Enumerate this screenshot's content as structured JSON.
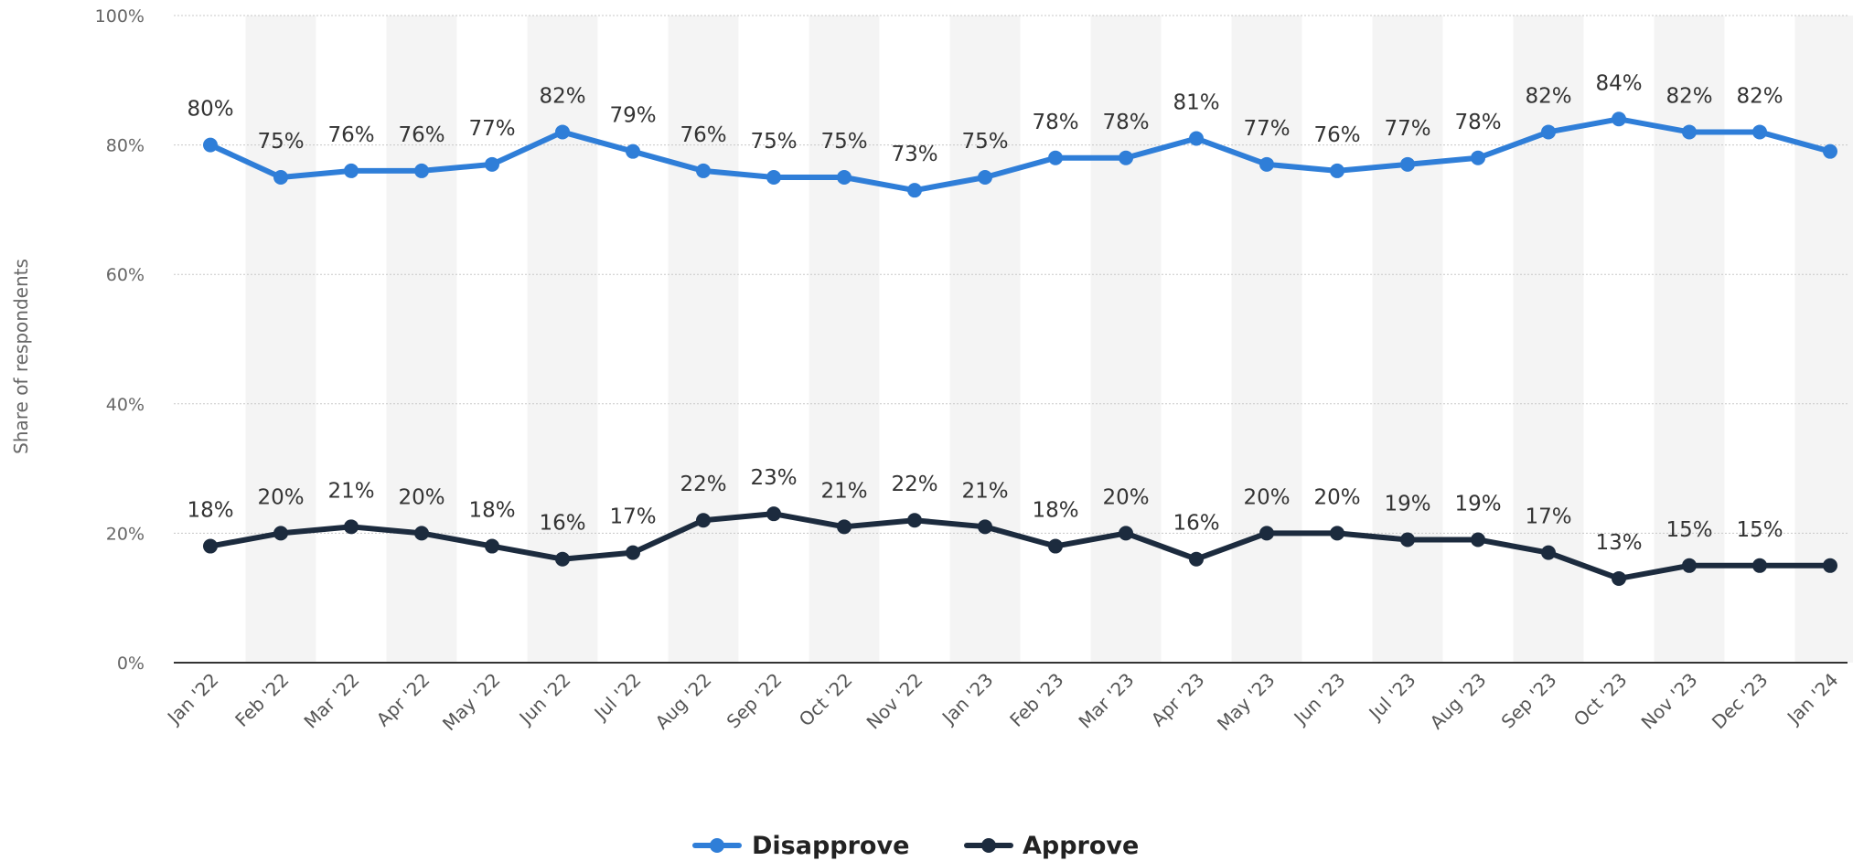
{
  "chart_data": {
    "type": "line",
    "title": "",
    "xlabel": "",
    "ylabel": "Share of respondents",
    "ylim": [
      0,
      100
    ],
    "yticks": [
      0,
      20,
      40,
      60,
      80,
      100
    ],
    "ytick_labels": [
      "0%",
      "20%",
      "40%",
      "60%",
      "80%",
      "100%"
    ],
    "grid": true,
    "legend_position": "bottom",
    "categories": [
      "Jan '22",
      "Feb '22",
      "Mar '22",
      "Apr '22",
      "May '22",
      "Jun '22",
      "Jul '22",
      "Aug '22",
      "Sep '22",
      "Oct '22",
      "Nov '22",
      "Jan '23",
      "Feb '23",
      "Mar '23",
      "Apr '23",
      "May '23",
      "Jun '23",
      "Jul '23",
      "Aug '23",
      "Sep '23",
      "Oct '23",
      "Nov '23",
      "Dec '23",
      "Jan '24"
    ],
    "series": [
      {
        "name": "Disapprove",
        "color": "#2f7ed8",
        "values": [
          80,
          75,
          76,
          76,
          77,
          82,
          79,
          76,
          75,
          75,
          73,
          75,
          78,
          78,
          81,
          77,
          76,
          77,
          78,
          82,
          84,
          82,
          82,
          79
        ],
        "labels": [
          "80%",
          "75%",
          "76%",
          "76%",
          "77%",
          "82%",
          "79%",
          "76%",
          "75%",
          "75%",
          "73%",
          "75%",
          "78%",
          "78%",
          "81%",
          "77%",
          "76%",
          "77%",
          "78%",
          "82%",
          "84%",
          "82%",
          "82%",
          ""
        ]
      },
      {
        "name": "Approve",
        "color": "#1c2b3e",
        "values": [
          18,
          20,
          21,
          20,
          18,
          16,
          17,
          22,
          23,
          21,
          22,
          21,
          18,
          20,
          16,
          20,
          20,
          19,
          19,
          17,
          13,
          15,
          15,
          15
        ],
        "labels": [
          "18%",
          "20%",
          "21%",
          "20%",
          "18%",
          "16%",
          "17%",
          "22%",
          "23%",
          "21%",
          "22%",
          "21%",
          "18%",
          "20%",
          "16%",
          "20%",
          "20%",
          "19%",
          "19%",
          "17%",
          "13%",
          "15%",
          "15%",
          ""
        ]
      }
    ]
  }
}
